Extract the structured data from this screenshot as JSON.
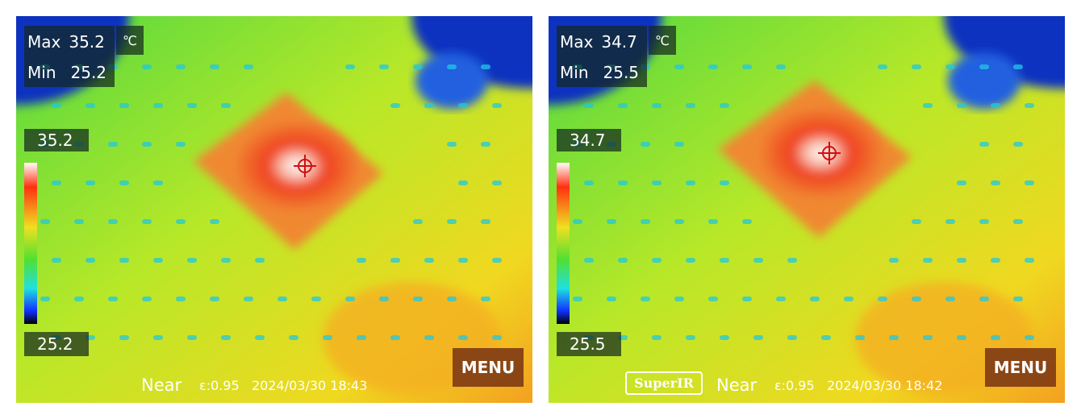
{
  "panels": [
    {
      "max_label": "Max",
      "max_value": "35.2",
      "unit": "℃",
      "min_label": "Min",
      "min_value": "25.2",
      "scale_max": "35.2",
      "scale_min": "25.2",
      "focus": "Near",
      "emissivity": "ε:0.95",
      "datetime": "2024/03/30 18:43",
      "menu": "MENU"
    },
    {
      "max_label": "Max",
      "max_value": "34.7",
      "unit": "℃",
      "min_label": "Min",
      "min_value": "25.5",
      "scale_max": "34.7",
      "scale_min": "25.5",
      "mode": "SuperIR",
      "focus": "Near",
      "emissivity": "ε:0.95",
      "datetime": "2024/03/30 18:42",
      "menu": "MENU"
    }
  ]
}
